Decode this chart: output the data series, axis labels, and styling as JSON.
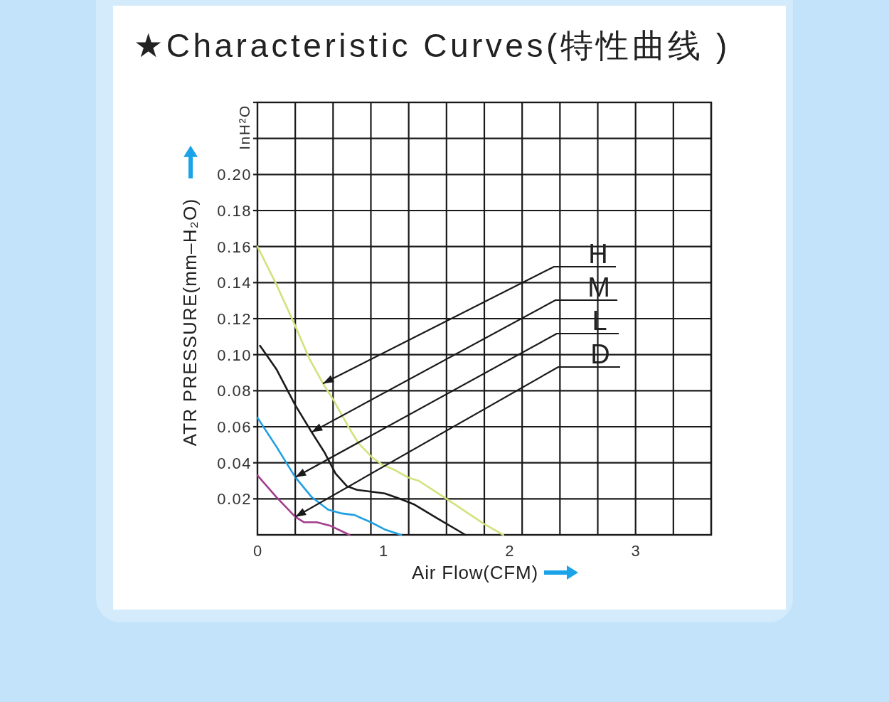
{
  "chart_data": {
    "type": "line",
    "title": "★Characteristic Curves(特性曲线 )",
    "xlabel": "Air Flow(CFM)",
    "ylabel": "ATR PRESSURE(mm–H₂O)",
    "annotations": [
      "InH²O",
      {
        "text": "H",
        "x": 0.52,
        "y": 0.084
      },
      {
        "text": "M",
        "x": 0.43,
        "y": 0.057
      },
      {
        "text": "L",
        "x": 0.3,
        "y": 0.032
      },
      {
        "text": "D",
        "x": 0.3,
        "y": 0.01
      }
    ],
    "series": [
      {
        "color": "#d2e27c",
        "x": [
          0,
          0.15,
          0.3,
          0.41,
          0.52,
          0.61,
          0.73,
          0.8,
          0.91,
          0.99,
          1.09,
          1.19,
          1.28,
          1.5,
          1.8,
          1.95
        ],
        "values": [
          0.16,
          0.139,
          0.116,
          0.098,
          0.084,
          0.074,
          0.059,
          0.051,
          0.043,
          0.039,
          0.036,
          0.032,
          0.03,
          0.02,
          0.006,
          0
        ]
      },
      {
        "color": "#1a1a1a",
        "x": [
          0.02,
          0.15,
          0.3,
          0.43,
          0.53,
          0.62,
          0.71,
          0.79,
          0.9,
          1.01,
          1.13,
          1.24,
          1.43,
          1.65
        ],
        "values": [
          0.105,
          0.092,
          0.072,
          0.057,
          0.046,
          0.034,
          0.027,
          0.025,
          0.024,
          0.023,
          0.02,
          0.017,
          0.009,
          0
        ]
      },
      {
        "color": "#1f9fe0",
        "x": [
          0,
          0.15,
          0.3,
          0.43,
          0.56,
          0.66,
          0.77,
          0.9,
          1.01,
          1.14
        ],
        "values": [
          0.065,
          0.049,
          0.032,
          0.021,
          0.014,
          0.012,
          0.011,
          0.007,
          0.003,
          0
        ]
      },
      {
        "color": "#a33d8c",
        "x": [
          0,
          0.15,
          0.3,
          0.37,
          0.47,
          0.58,
          0.73
        ],
        "values": [
          0.033,
          0.021,
          0.01,
          0.007,
          0.007,
          0.005,
          0
        ]
      }
    ],
    "xlim": [
      0,
      3.6
    ],
    "ylim": [
      0,
      0.24
    ],
    "xticks": [
      0,
      {
        "value": 0.3,
        "label": null
      },
      {
        "value": 0.6,
        "label": null
      },
      {
        "value": 0.9,
        "label": null
      },
      1,
      {
        "value": 1.2,
        "label": null
      },
      {
        "value": 1.5,
        "label": null
      },
      {
        "value": 1.8,
        "label": null
      },
      2,
      {
        "value": 2.1,
        "label": null
      },
      {
        "value": 2.4,
        "label": null
      },
      {
        "value": 2.7,
        "label": null
      },
      3,
      {
        "value": 3.0,
        "label": null
      },
      {
        "value": 3.3,
        "label": null
      },
      {
        "value": 3.6,
        "label": null
      }
    ],
    "yticks": [
      0.02,
      0.04,
      0.06,
      0.08,
      {
        "value": 0.1,
        "label": "0.10"
      },
      0.12,
      0.14,
      0.16,
      0.18,
      {
        "value": 0.2,
        "label": "0.20"
      },
      {
        "value": 0.22,
        "label": null
      },
      {
        "value": 0.24,
        "label": null
      }
    ],
    "grid": true
  }
}
